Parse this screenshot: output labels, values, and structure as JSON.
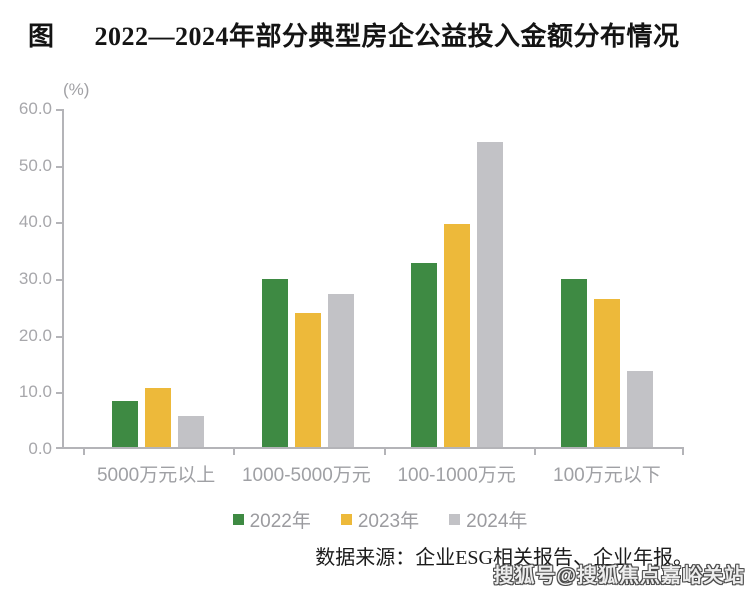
{
  "title": {
    "prefix": "图",
    "text": "2022—2024年部分典型房企公益投入金额分布情况"
  },
  "chart_data": {
    "type": "bar",
    "title": "2022—2024年部分典型房企公益投入金额分布情况",
    "unit_label": "(%)",
    "categories": [
      "5000万元以上",
      "1000-5000万元",
      "100-1000万元",
      "100万元以下"
    ],
    "series": [
      {
        "name": "2022年",
        "color": "#3e8a43",
        "values": [
          8.1,
          29.6,
          32.4,
          29.6
        ]
      },
      {
        "name": "2023年",
        "color": "#edb93a",
        "values": [
          10.4,
          23.7,
          39.4,
          26.2
        ]
      },
      {
        "name": "2024年",
        "color": "#c2c2c6",
        "values": [
          5.4,
          27.0,
          53.9,
          13.5
        ]
      }
    ],
    "ylim": [
      0,
      60
    ],
    "ytick_labels": [
      "60.0",
      "50.0",
      "40.0",
      "30.0",
      "20.0",
      "10.0",
      "0.0"
    ],
    "grid": false,
    "legend_position": "bottom"
  },
  "source": {
    "text": "数据来源：企业ESG相关报告、企业年报。"
  },
  "watermark": {
    "text": "搜狐号@搜狐焦点嘉峪关站"
  },
  "colors": {
    "axis": "#b4b4b8",
    "axis_text": "#a7a7ab",
    "title_text": "#141414"
  }
}
